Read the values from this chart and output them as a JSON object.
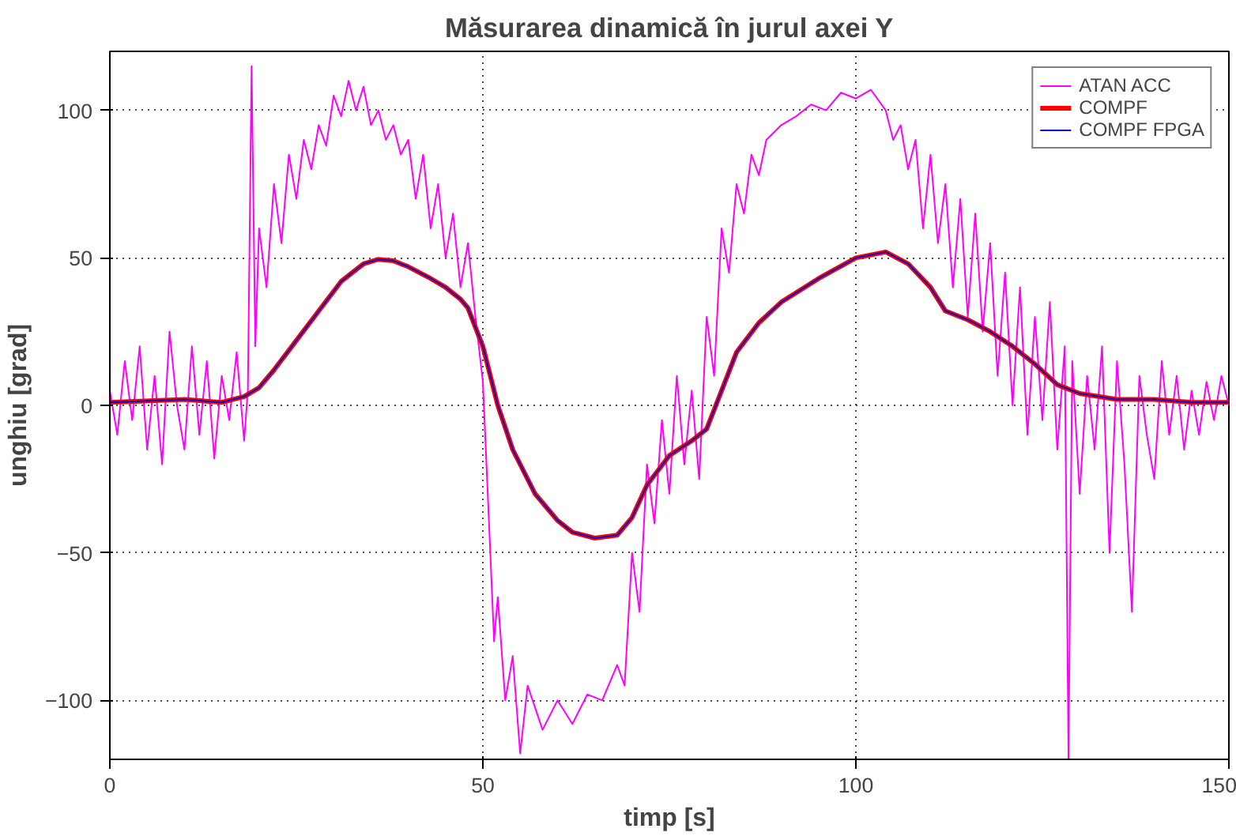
{
  "chart_data": {
    "type": "line",
    "title": "Măsurarea dinamică în jurul axei Y",
    "xlabel": "timp [s]",
    "ylabel": "unghiu [grad]",
    "xlim": [
      0,
      150
    ],
    "ylim": [
      -120,
      120
    ],
    "xticks": [
      0,
      50,
      100,
      150
    ],
    "yticks": [
      -100,
      -50,
      0,
      50,
      100
    ],
    "grid": true,
    "legend": "top right",
    "line_style": "solid",
    "series": [
      {
        "name": "ATAN ACC",
        "color": "#ff00ff",
        "x": [
          0,
          1,
          2,
          3,
          4,
          5,
          6,
          7,
          8,
          9,
          10,
          11,
          12,
          13,
          14,
          15,
          16,
          17,
          18,
          18.5,
          19,
          19.5,
          20,
          21,
          22,
          23,
          24,
          25,
          26,
          27,
          28,
          29,
          30,
          31,
          32,
          33,
          34,
          35,
          36,
          37,
          38,
          39,
          40,
          41,
          42,
          43,
          44,
          45,
          46,
          47,
          48,
          49,
          50,
          51,
          51.5,
          52,
          53,
          54,
          55,
          56,
          58,
          60,
          62,
          64,
          66,
          68,
          69,
          70,
          71,
          72,
          73,
          74,
          75,
          76,
          77,
          78,
          79,
          80,
          81,
          82,
          83,
          84,
          85,
          86,
          87,
          88,
          90,
          92,
          94,
          96,
          98,
          100,
          102,
          104,
          105,
          106,
          107,
          108,
          109,
          110,
          111,
          112,
          113,
          114,
          115,
          116,
          117,
          118,
          119,
          120,
          121,
          122,
          123,
          124,
          125,
          126,
          127,
          128,
          128.5,
          129,
          130,
          131,
          132,
          133,
          134,
          135,
          136,
          137,
          138,
          139,
          140,
          141,
          142,
          143,
          144,
          145,
          146,
          147,
          148,
          149,
          150
        ],
        "values": [
          5,
          -10,
          15,
          -5,
          20,
          -15,
          10,
          -20,
          25,
          0,
          -15,
          20,
          -10,
          15,
          -18,
          10,
          -5,
          18,
          -12,
          5,
          115,
          20,
          60,
          40,
          75,
          55,
          85,
          70,
          90,
          80,
          95,
          88,
          105,
          98,
          110,
          100,
          108,
          95,
          100,
          90,
          95,
          85,
          90,
          70,
          85,
          60,
          75,
          50,
          65,
          40,
          55,
          30,
          8,
          -50,
          -80,
          -65,
          -100,
          -85,
          -118,
          -95,
          -110,
          -100,
          -108,
          -98,
          -100,
          -88,
          -95,
          -50,
          -70,
          -20,
          -40,
          -5,
          -30,
          10,
          -20,
          5,
          -25,
          30,
          10,
          60,
          45,
          75,
          65,
          85,
          78,
          90,
          95,
          98,
          102,
          100,
          106,
          104,
          107,
          100,
          90,
          95,
          80,
          90,
          60,
          85,
          55,
          75,
          40,
          70,
          30,
          65,
          25,
          55,
          10,
          45,
          0,
          40,
          -10,
          30,
          -5,
          35,
          -15,
          20,
          -120,
          15,
          -30,
          10,
          -15,
          20,
          -50,
          15,
          -20,
          -70,
          10,
          -10,
          -25,
          15,
          -10,
          10,
          -15,
          5,
          -10,
          8,
          -5,
          10,
          0
        ]
      },
      {
        "name": "COMPF",
        "color": "#ff0000",
        "x": [
          0,
          10,
          15,
          18,
          20,
          22,
          25,
          28,
          31,
          34,
          36,
          38,
          40,
          43,
          45,
          47,
          48,
          50,
          52,
          54,
          57,
          60,
          62,
          65,
          68,
          70,
          72,
          75,
          78,
          80,
          82,
          84,
          87,
          90,
          95,
          100,
          104,
          107,
          110,
          112,
          115,
          118,
          121,
          124,
          127,
          130,
          135,
          140,
          145,
          150
        ],
        "values": [
          1,
          2,
          1,
          3,
          6,
          12,
          22,
          32,
          42,
          48,
          49.5,
          49,
          47,
          43,
          40,
          36,
          33,
          20,
          0,
          -15,
          -30,
          -39,
          -43,
          -45,
          -44,
          -38,
          -27,
          -17,
          -12,
          -8,
          5,
          18,
          28,
          35,
          43,
          50,
          52,
          48,
          40,
          32,
          29,
          25,
          20,
          14,
          7,
          4,
          2,
          2,
          1,
          1
        ]
      },
      {
        "name": "COMPF FPGA",
        "color": "#0000cc",
        "x": [
          0,
          10,
          15,
          18,
          20,
          22,
          25,
          28,
          31,
          34,
          36,
          38,
          40,
          43,
          45,
          47,
          48,
          50,
          52,
          54,
          57,
          60,
          62,
          65,
          68,
          70,
          72,
          75,
          78,
          80,
          82,
          84,
          87,
          90,
          95,
          100,
          104,
          107,
          110,
          112,
          115,
          118,
          121,
          124,
          127,
          130,
          135,
          140,
          145,
          150
        ],
        "values": [
          1,
          2,
          1,
          3,
          6,
          12,
          22,
          32,
          42,
          48,
          49.5,
          49,
          47,
          43,
          40,
          36,
          33,
          20,
          0,
          -15,
          -30,
          -39,
          -43,
          -45,
          -44,
          -38,
          -27,
          -17,
          -12,
          -8,
          5,
          18,
          28,
          35,
          43,
          50,
          52,
          48,
          40,
          32,
          29,
          25,
          20,
          14,
          7,
          4,
          2,
          2,
          1,
          1
        ]
      }
    ]
  }
}
